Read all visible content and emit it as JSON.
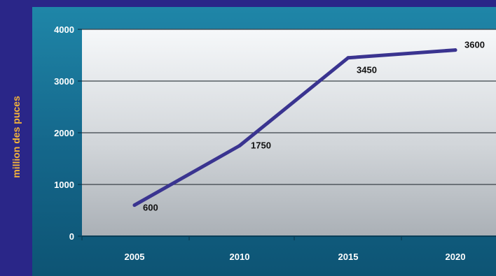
{
  "chart_data": {
    "type": "line",
    "title": "",
    "xlabel": "",
    "ylabel": "million des puces",
    "x": [
      "2005",
      "2010",
      "2015",
      "2020"
    ],
    "series": [
      {
        "values": [
          600,
          1750,
          3450,
          3600
        ]
      }
    ],
    "data_labels": [
      "600",
      "1750",
      "3450",
      "3600"
    ],
    "y_ticks": [
      "0",
      "1000",
      "2000",
      "3000",
      "4000"
    ],
    "ylim": [
      0,
      4000
    ],
    "grid": true,
    "legend": "none"
  },
  "colors": {
    "page_background": "#2a2688",
    "axis_label": "#f4b43a",
    "line": "#3a3490",
    "plot_area_top": "#f4f6f8",
    "plot_area_bottom": "#aeb3b9",
    "frame": "#0f5f80",
    "tick_text": "#ffffff",
    "data_label_text": "#111111"
  }
}
